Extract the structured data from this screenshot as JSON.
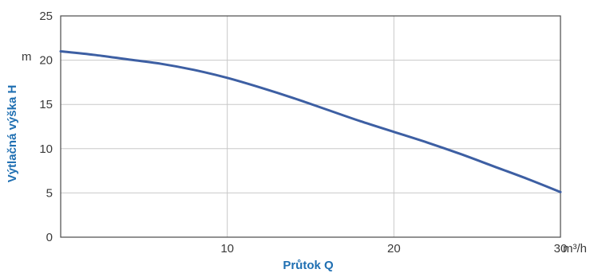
{
  "chart_data": {
    "type": "line",
    "title": "",
    "xlabel": "Průtok Q",
    "ylabel": "Výtlačná výška H",
    "xunit": "m³/h",
    "yunit": "m",
    "xlim": [
      0,
      30
    ],
    "ylim": [
      0,
      25
    ],
    "xticks": [
      10,
      20,
      30
    ],
    "yticks": [
      0,
      5,
      10,
      15,
      20,
      25
    ],
    "grid": true,
    "colors": {
      "curve": "#3d5fa3",
      "grid": "#c8c8c8",
      "frame": "#4a4a4a",
      "axis_title": "#1f6fb2"
    },
    "series": [
      {
        "x": [
          0,
          2,
          4,
          6,
          8,
          10,
          12,
          14,
          16,
          18,
          20,
          22,
          24,
          26,
          28,
          30
        ],
        "y": [
          21,
          20.6,
          20.1,
          19.6,
          18.9,
          18,
          16.9,
          15.7,
          14.4,
          13.1,
          11.9,
          10.7,
          9.4,
          8.0,
          6.6,
          5.1
        ]
      }
    ]
  }
}
